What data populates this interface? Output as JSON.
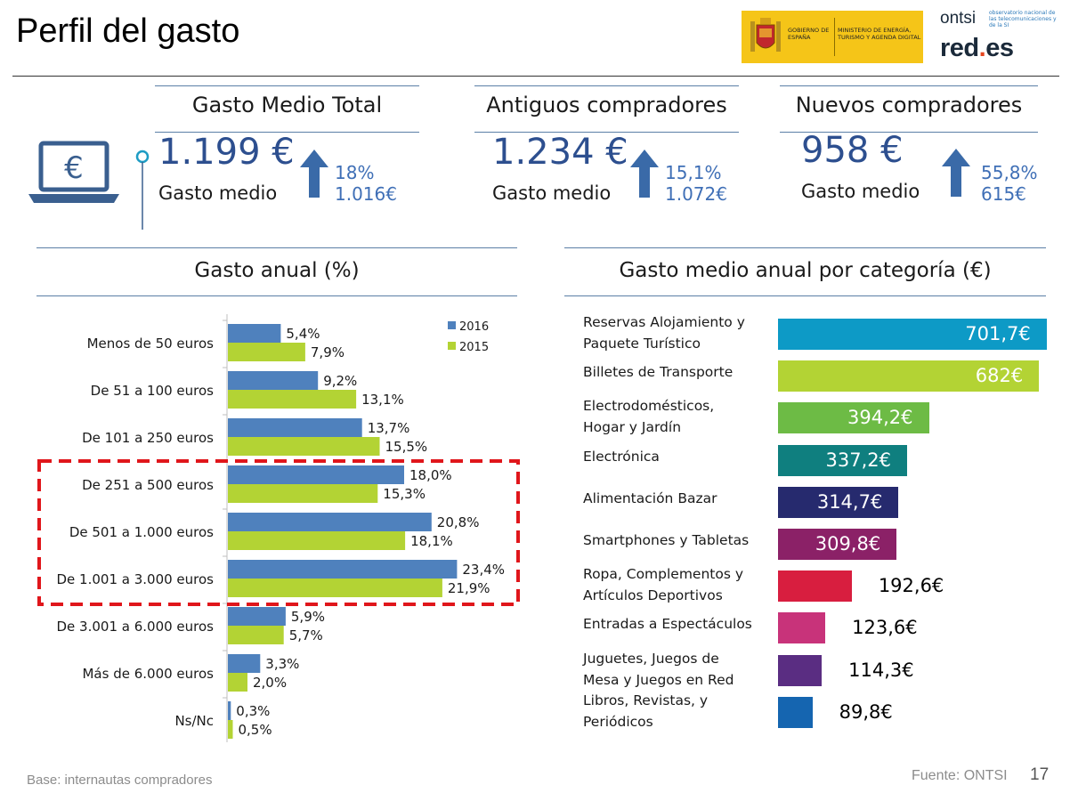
{
  "page": {
    "title": "Perfil del gasto",
    "footer_left": "Base: internautas compradores",
    "footer_right": "Fuente: ONTSI",
    "page_number": "17"
  },
  "logos": {
    "gov_left": "GOBIERNO DE ESPAÑA",
    "gov_right": "MINISTERIO DE ENERGÍA, TURISMO Y AGENDA DIGITAL",
    "ontsi": "ontsi",
    "ontsi_sub": "observatorio nacional de las telecomunicaciones y de la SI",
    "red": "red",
    "red_dot": ".",
    "red_tail": "es"
  },
  "cards": [
    {
      "heading": "Gasto Medio Total",
      "value": "1.199 €",
      "label": "Gasto medio",
      "change": "18%",
      "previous": "1.016€"
    },
    {
      "heading": "Antiguos compradores",
      "value": "1.234 €",
      "label": "Gasto medio",
      "change": "15,1%",
      "previous": "1.072€"
    },
    {
      "heading": "Nuevos compradores",
      "value": "958 €",
      "label": "Gasto medio",
      "change": "55,8%",
      "previous": "615€"
    }
  ],
  "laptop_symbol": "€",
  "chart_data": [
    {
      "type": "bar",
      "orientation": "horizontal",
      "title": "Gasto anual (%)",
      "categories": [
        "Menos de 50 euros",
        "De 51 a 100 euros",
        "De 101 a 250 euros",
        "De 251 a 500 euros",
        "De 501 a 1.000 euros",
        "De 1.001 a 3.000 euros",
        "De 3.001 a 6.000 euros",
        "Más de 6.000 euros",
        "Ns/Nc"
      ],
      "series": [
        {
          "name": "2016",
          "color": "#4f81bd",
          "values": [
            5.4,
            9.2,
            13.7,
            18.0,
            20.8,
            23.4,
            5.9,
            3.3,
            0.3
          ],
          "labels": [
            "5,4%",
            "9,2%",
            "13,7%",
            "18,0%",
            "20,8%",
            "23,4%",
            "5,9%",
            "3,3%",
            "0,3%"
          ]
        },
        {
          "name": "2015",
          "color": "#b3d334",
          "values": [
            7.9,
            13.1,
            15.5,
            15.3,
            18.1,
            21.9,
            5.7,
            2.0,
            0.5
          ],
          "labels": [
            "7,9%",
            "13,1%",
            "15,5%",
            "15,3%",
            "18,1%",
            "21,9%",
            "5,7%",
            "2,0%",
            "0,5%"
          ]
        }
      ],
      "xlim": [
        0,
        25
      ],
      "legend": "top-right",
      "highlighted_categories": [
        "De 251 a 500 euros",
        "De 501 a 1.000 euros",
        "De 1.001 a 3.000 euros"
      ],
      "highlight_color": "#e0161b"
    },
    {
      "type": "bar",
      "orientation": "horizontal",
      "title": "Gasto medio anual por categoría (€)",
      "categories": [
        [
          "Reservas Alojamiento y",
          "Paquete Turístico"
        ],
        [
          "Billetes de Transporte"
        ],
        [
          "Electrodomésticos,",
          "Hogar y Jardín"
        ],
        [
          "Electrónica"
        ],
        [
          "Alimentación Bazar"
        ],
        [
          "Smartphones y Tabletas"
        ],
        [
          "Ropa, Complementos y",
          "Artículos Deportivos"
        ],
        [
          "Entradas a Espectáculos"
        ],
        [
          "Juguetes, Juegos de",
          "Mesa y Juegos en Red"
        ],
        [
          "Libros, Revistas, y",
          "Periódicos"
        ]
      ],
      "values": [
        701.7,
        682,
        394.2,
        337.2,
        314.7,
        309.8,
        192.6,
        123.6,
        114.3,
        89.8
      ],
      "labels": [
        "701,7€",
        "682€",
        "394,2€",
        "337,2€",
        "314,7€",
        "309,8€",
        "192,6€",
        "123,6€",
        "114,3€",
        "89,8€"
      ],
      "colors": [
        "#0d9ac6",
        "#b3d334",
        "#6dbb45",
        "#0f7f7f",
        "#262a6e",
        "#8b2167",
        "#d81e3f",
        "#c8337a",
        "#5a2d82",
        "#1565b0"
      ]
    }
  ]
}
